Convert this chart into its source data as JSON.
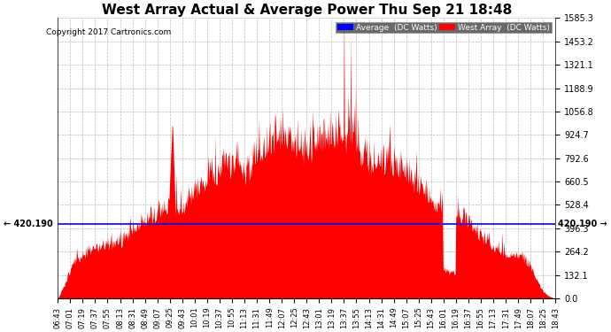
{
  "title": "West Array Actual & Average Power Thu Sep 21 18:48",
  "copyright": "Copyright 2017 Cartronics.com",
  "average_value": 420.19,
  "ymax": 1585.3,
  "ymin": 0.0,
  "yticks": [
    0.0,
    132.1,
    264.2,
    396.3,
    528.4,
    660.5,
    792.6,
    924.7,
    1056.8,
    1188.9,
    1321.1,
    1453.2,
    1585.3
  ],
  "xtick_labels": [
    "06:43",
    "07:01",
    "07:19",
    "07:37",
    "07:55",
    "08:13",
    "08:31",
    "08:49",
    "09:07",
    "09:25",
    "09:43",
    "10:01",
    "10:19",
    "10:37",
    "10:55",
    "11:13",
    "11:31",
    "11:49",
    "12:07",
    "12:25",
    "12:43",
    "13:01",
    "13:19",
    "13:37",
    "13:55",
    "14:13",
    "14:31",
    "14:49",
    "15:07",
    "15:25",
    "15:43",
    "16:01",
    "16:19",
    "16:37",
    "16:55",
    "17:13",
    "17:31",
    "17:49",
    "18:07",
    "18:25",
    "18:43"
  ],
  "fill_color": "#FF0000",
  "avg_line_color": "#0000FF",
  "bg_color": "#FFFFFF",
  "plot_bg_color": "#FFFFFF",
  "grid_color": "#AAAAAA",
  "title_fontsize": 11,
  "legend_avg_bg": "#0000FF",
  "legend_west_bg": "#FF0000",
  "legend_text_color": "#FFFFFF"
}
